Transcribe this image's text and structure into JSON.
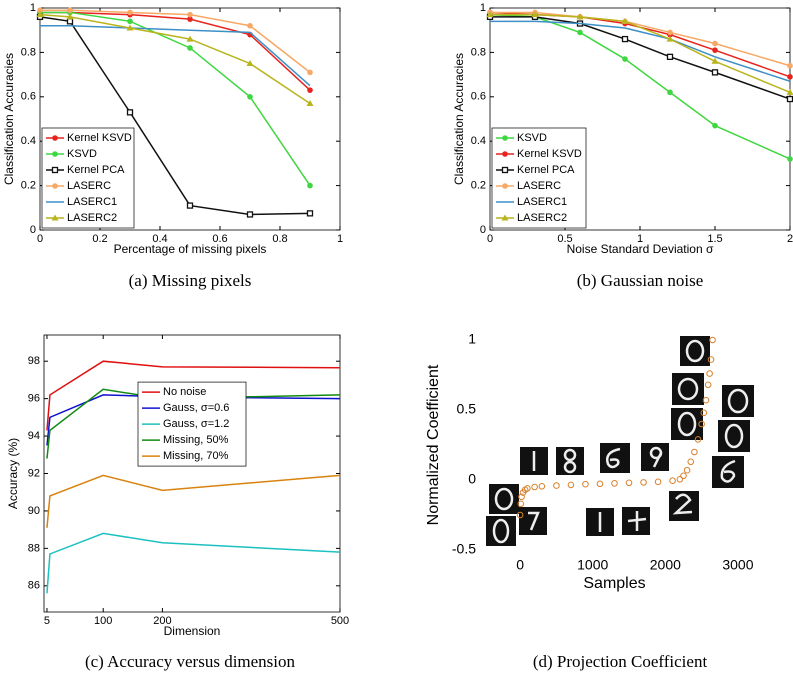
{
  "chart_data": [
    {
      "type": "line",
      "xlabel": "Percentage of missing pixels",
      "ylabel": "Classification Accuracies",
      "caption": "(a) Missing pixels",
      "x": [
        0,
        0.1,
        0.3,
        0.5,
        0.7,
        0.9
      ],
      "xlim": [
        0,
        1
      ],
      "ylim": [
        0,
        1
      ],
      "xticks": [
        0,
        0.2,
        0.4,
        0.6,
        0.8,
        1
      ],
      "yticks": [
        0,
        0.2,
        0.4,
        0.6,
        0.8,
        1
      ],
      "legend": "lower left",
      "series": [
        {
          "name": "Kernel KSVD",
          "color": "#e8221c",
          "marker": "circle",
          "values": [
            0.98,
            0.98,
            0.97,
            0.95,
            0.88,
            0.63
          ]
        },
        {
          "name": "KSVD",
          "color": "#3fd73f",
          "marker": "circle",
          "values": [
            0.98,
            0.98,
            0.94,
            0.82,
            0.6,
            0.2
          ]
        },
        {
          "name": "Kernel PCA",
          "color": "#111111",
          "marker": "square",
          "values": [
            0.96,
            0.94,
            0.53,
            0.11,
            0.07,
            0.075
          ]
        },
        {
          "name": "LASERC",
          "color": "#f7a865",
          "marker": "circle",
          "values": [
            0.99,
            0.99,
            0.98,
            0.97,
            0.92,
            0.71
          ]
        },
        {
          "name": "LASERC1",
          "color": "#3d8fc6",
          "marker": "none",
          "values": [
            0.92,
            0.92,
            0.91,
            0.9,
            0.89,
            0.65
          ]
        },
        {
          "name": "LASERC2",
          "color": "#b9b41c",
          "marker": "triangle",
          "values": [
            0.97,
            0.96,
            0.91,
            0.86,
            0.75,
            0.57
          ]
        }
      ]
    },
    {
      "type": "line",
      "xlabel": "Noise Standard Deviation σ",
      "ylabel": "Classification Accuracies",
      "caption": "(b) Gaussian noise",
      "x": [
        0,
        0.3,
        0.6,
        0.9,
        1.2,
        1.5,
        2
      ],
      "xlim": [
        0,
        2
      ],
      "ylim": [
        0,
        1
      ],
      "xticks": [
        0,
        0.5,
        1,
        1.5,
        2
      ],
      "yticks": [
        0,
        0.2,
        0.4,
        0.6,
        0.8,
        1
      ],
      "legend": "lower left",
      "series": [
        {
          "name": "KSVD",
          "color": "#3fd73f",
          "marker": "circle",
          "values": [
            0.97,
            0.96,
            0.89,
            0.77,
            0.62,
            0.47,
            0.32
          ]
        },
        {
          "name": "Kernel KSVD",
          "color": "#e8221c",
          "marker": "circle",
          "values": [
            0.98,
            0.97,
            0.96,
            0.93,
            0.88,
            0.81,
            0.69
          ]
        },
        {
          "name": "Kernel PCA",
          "color": "#111111",
          "marker": "square",
          "values": [
            0.96,
            0.96,
            0.93,
            0.86,
            0.78,
            0.71,
            0.59
          ]
        },
        {
          "name": "LASERC",
          "color": "#f7a865",
          "marker": "circle",
          "values": [
            0.98,
            0.98,
            0.96,
            0.94,
            0.89,
            0.84,
            0.74
          ]
        },
        {
          "name": "LASERC1",
          "color": "#3d8fc6",
          "marker": "none",
          "values": [
            0.94,
            0.94,
            0.93,
            0.91,
            0.86,
            0.78,
            0.67
          ]
        },
        {
          "name": "LASERC2",
          "color": "#b9b41c",
          "marker": "triangle",
          "values": [
            0.97,
            0.97,
            0.96,
            0.94,
            0.86,
            0.76,
            0.62
          ]
        }
      ]
    },
    {
      "type": "line",
      "xlabel": "Dimension",
      "ylabel": "Accuracy (%)",
      "caption": "(c) Accuracy versus dimension",
      "x": [
        5,
        10,
        100,
        200,
        500
      ],
      "xlim": [
        0,
        500
      ],
      "ylim": [
        84.6,
        99.4
      ],
      "xticks": [
        5,
        100,
        200,
        500
      ],
      "yticks": [
        86,
        88,
        90,
        92,
        94,
        96,
        98
      ],
      "legend": "center",
      "series": [
        {
          "name": "No noise",
          "color": "#e01010",
          "marker": "none",
          "values": [
            94.3,
            96.2,
            98.0,
            97.7,
            97.65
          ]
        },
        {
          "name": "Gauss, σ=0.6",
          "color": "#1010d0",
          "marker": "none",
          "values": [
            93.5,
            95.0,
            96.2,
            96.1,
            96.0
          ]
        },
        {
          "name": "Gauss, σ=1.2",
          "color": "#1cc0c0",
          "marker": "none",
          "values": [
            85.6,
            87.7,
            88.8,
            88.3,
            87.8
          ]
        },
        {
          "name": "Missing, 50%",
          "color": "#128a12",
          "marker": "none",
          "values": [
            92.8,
            94.3,
            96.5,
            96.0,
            96.2
          ]
        },
        {
          "name": "Missing, 70%",
          "color": "#d9820e",
          "marker": "none",
          "values": [
            89.1,
            90.8,
            91.9,
            91.1,
            91.9
          ]
        }
      ]
    },
    {
      "type": "scatter",
      "xlabel": "Samples",
      "ylabel": "Normalized Coefficient",
      "caption": "(d) Projection Coefficient",
      "x": [
        0,
        10,
        20,
        40,
        70,
        100,
        200,
        300,
        500,
        700,
        900,
        1100,
        1300,
        1500,
        1700,
        1900,
        2100,
        2200,
        2250,
        2300,
        2350,
        2400,
        2450,
        2500,
        2530,
        2560,
        2590,
        2610,
        2630,
        2650
      ],
      "values": [
        -0.25,
        -0.17,
        -0.12,
        -0.09,
        -0.07,
        -0.06,
        -0.05,
        -0.045,
        -0.04,
        -0.035,
        -0.03,
        -0.027,
        -0.024,
        -0.02,
        -0.017,
        -0.013,
        -0.005,
        0.005,
        0.03,
        0.07,
        0.13,
        0.2,
        0.29,
        0.4,
        0.48,
        0.57,
        0.68,
        0.76,
        0.86,
        1.0
      ],
      "color": "#d9822b",
      "xlim": [
        -800,
        3400
      ],
      "ylim": [
        -0.5,
        1
      ],
      "xticks": [
        0,
        1000,
        2000,
        3000
      ],
      "yticks": [
        -0.5,
        0,
        0.5,
        1
      ]
    }
  ]
}
